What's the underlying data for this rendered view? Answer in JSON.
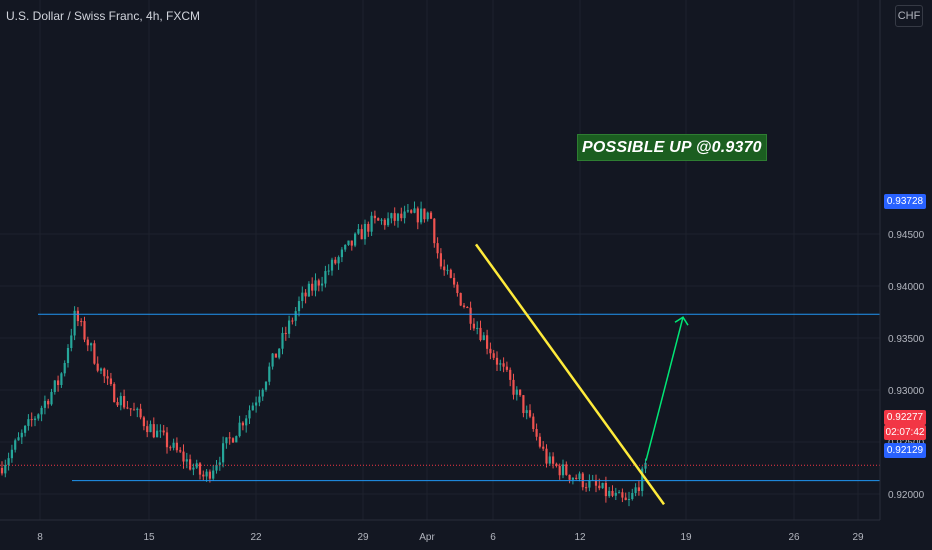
{
  "header": {
    "symbol_title": "U.S. Dollar / Swiss Franc, 4h, FXCM",
    "currency_badge": "CHF"
  },
  "annotation": {
    "text": "POSSIBLE UP @0.9370"
  },
  "price_labels": {
    "resistance": "0.93728",
    "support": "0.92129",
    "last": "0.92277",
    "countdown": "02:07:42"
  },
  "colors": {
    "background": "#131722",
    "bull": "#26a69a",
    "bear": "#ef5350",
    "level_line": "#2196f3",
    "trendline": "#ffeb3b",
    "arrow": "#00e676",
    "annotation_bg": "#1b5e20",
    "last_price": "#f23645",
    "level_tag": "#2962ff"
  },
  "chart_data": {
    "type": "candlestick",
    "title": "U.S. Dollar / Swiss Franc, 4h, FXCM",
    "timeframe": "4h",
    "ylim": [
      0.9175,
      0.9675
    ],
    "y_ticks": [
      "0.94500",
      "0.94000",
      "0.93500",
      "0.93000",
      "0.92500",
      "0.92000"
    ],
    "x_ticks": [
      "8",
      "15",
      "22",
      "29",
      "Apr",
      "6",
      "12",
      "19",
      "26",
      "29"
    ],
    "horizontal_levels": [
      0.93728,
      0.92129
    ],
    "last_price": 0.92277,
    "trendline": {
      "from": 0.944,
      "to": 0.919
    },
    "projection_target": 0.937,
    "key_closes": [
      0.9225,
      0.931,
      0.9372,
      0.93,
      0.9215,
      0.929,
      0.9385,
      0.946,
      0.947,
      0.942,
      0.936,
      0.929,
      0.923,
      0.919,
      0.92277
    ]
  }
}
